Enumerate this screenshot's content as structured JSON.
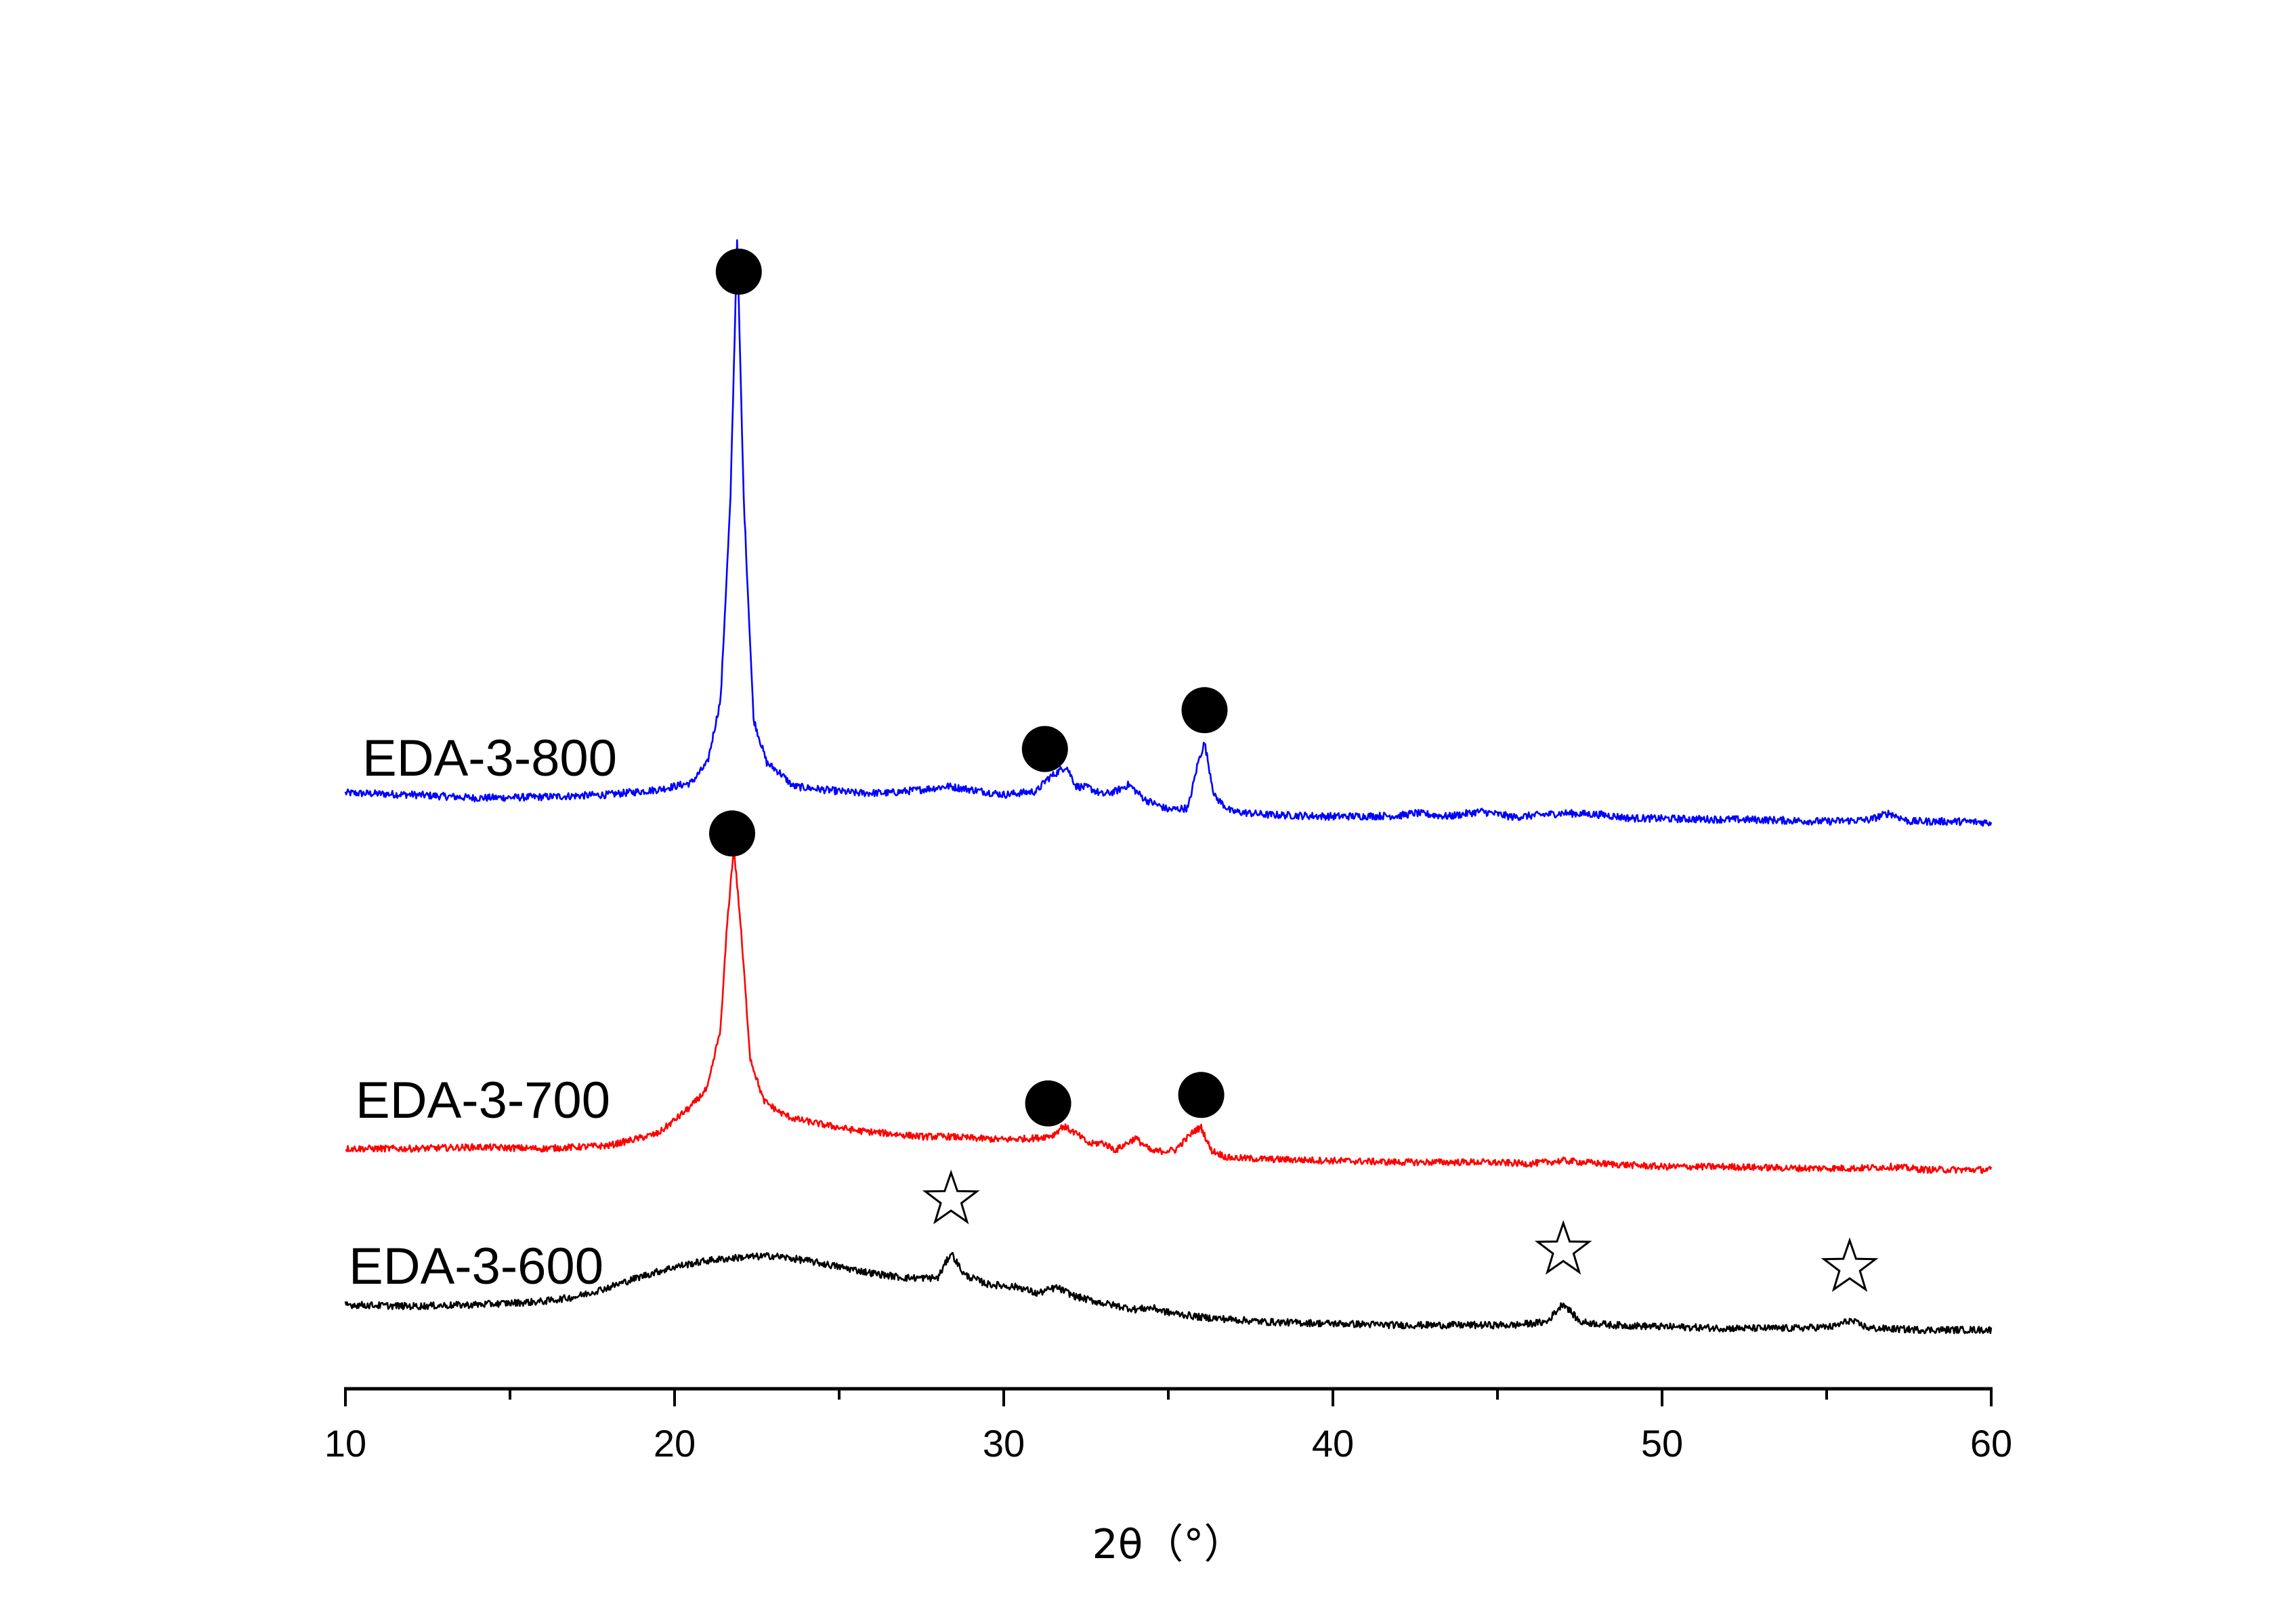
{
  "chart_data": {
    "type": "line",
    "title": "",
    "xlabel": "2θ（°）",
    "ylabel": "",
    "xlim": [
      10,
      60
    ],
    "x_ticks": [
      "10",
      "20",
      "30",
      "40",
      "50",
      "60"
    ],
    "grid": false,
    "legend": "none",
    "series": [
      {
        "name": "EDA-3-800",
        "color": "#0000ff",
        "baseline": 0,
        "x": [
          10,
          12,
          14,
          16,
          18,
          19.5,
          20.5,
          21.0,
          21.4,
          21.7,
          21.9,
          22.1,
          22.4,
          22.8,
          23.2,
          23.6,
          24.5,
          25.5,
          26.5,
          27.5,
          28.3,
          29.0,
          30.0,
          31.0,
          31.3,
          31.6,
          31.9,
          32.2,
          32.6,
          33.0,
          33.4,
          33.8,
          34.3,
          35.0,
          35.6,
          35.9,
          36.1,
          36.4,
          36.9,
          38,
          40,
          42,
          42.5,
          43.5,
          44.5,
          45.5,
          47.0,
          48.2,
          49,
          51,
          53,
          55,
          56.3,
          56.9,
          57.5,
          59,
          60
        ],
        "y": [
          100,
          95,
          85,
          88,
          95,
          110,
          130,
          190,
          380,
          980,
          1750,
          980,
          320,
          190,
          160,
          120,
          110,
          100,
          100,
          110,
          120,
          110,
          95,
          105,
          140,
          160,
          180,
          120,
          115,
          95,
          105,
          125,
          80,
          50,
          55,
          190,
          250,
          90,
          45,
          35,
          30,
          32,
          40,
          30,
          45,
          28,
          40,
          35,
          25,
          22,
          20,
          15,
          20,
          40,
          15,
          15,
          12
        ]
      },
      {
        "name": "EDA-3-700",
        "color": "#ff0000",
        "baseline": 0,
        "x": [
          10,
          12,
          14,
          16,
          18,
          19.5,
          20.5,
          21.0,
          21.4,
          21.6,
          21.8,
          22.0,
          22.3,
          22.7,
          23.2,
          23.6,
          24.5,
          25.5,
          26.5,
          27.5,
          28.3,
          29.0,
          30.0,
          31.0,
          31.5,
          31.8,
          32.2,
          32.6,
          33.0,
          33.4,
          34.0,
          34.5,
          35.2,
          35.8,
          36.0,
          36.3,
          36.8,
          38,
          40,
          42,
          44.5,
          46,
          47.0,
          48.2,
          50,
          52,
          54,
          56,
          57,
          58,
          60
        ],
        "y": [
          100,
          100,
          105,
          100,
          110,
          150,
          240,
          300,
          500,
          850,
          1100,
          850,
          400,
          260,
          220,
          200,
          180,
          160,
          150,
          140,
          140,
          135,
          130,
          135,
          145,
          175,
          150,
          115,
          120,
          95,
          135,
          90,
          95,
          160,
          170,
          95,
          70,
          65,
          60,
          55,
          55,
          50,
          60,
          50,
          40,
          40,
          35,
          35,
          40,
          30,
          30
        ]
      },
      {
        "name": "EDA-3-600",
        "color": "#000000",
        "baseline": 0,
        "x": [
          10,
          12,
          14,
          16,
          17,
          18,
          19,
          20,
          21,
          22,
          23,
          24,
          25,
          26,
          27,
          28,
          28.4,
          28.8,
          29.5,
          30.5,
          31.0,
          31.6,
          32.2,
          33,
          34,
          34.5,
          35,
          36,
          38,
          40,
          42,
          44,
          45.5,
          46.5,
          47.0,
          47.5,
          48.5,
          50,
          52,
          54,
          55.2,
          55.7,
          56.3,
          58,
          60
        ],
        "y": [
          95,
          90,
          95,
          105,
          120,
          150,
          185,
          215,
          235,
          245,
          250,
          235,
          215,
          195,
          180,
          180,
          260,
          190,
          160,
          150,
          130,
          150,
          120,
          100,
          80,
          85,
          70,
          55,
          40,
          35,
          30,
          30,
          30,
          40,
          100,
          40,
          30,
          25,
          20,
          20,
          25,
          45,
          20,
          15,
          15
        ]
      }
    ],
    "markers": [
      {
        "series": "EDA-3-800",
        "shape": "filled-circle",
        "x": 21.95
      },
      {
        "series": "EDA-3-800",
        "shape": "filled-circle",
        "x": 31.25
      },
      {
        "series": "EDA-3-800",
        "shape": "filled-circle",
        "x": 36.1
      },
      {
        "series": "EDA-3-700",
        "shape": "filled-circle",
        "x": 21.75
      },
      {
        "series": "EDA-3-700",
        "shape": "filled-circle",
        "x": 31.35
      },
      {
        "series": "EDA-3-700",
        "shape": "filled-circle",
        "x": 36.0
      },
      {
        "series": "EDA-3-600",
        "shape": "open-star",
        "x": 28.4
      },
      {
        "series": "EDA-3-600",
        "shape": "open-star",
        "x": 47.0
      },
      {
        "series": "EDA-3-600",
        "shape": "open-star",
        "x": 55.7
      }
    ]
  }
}
